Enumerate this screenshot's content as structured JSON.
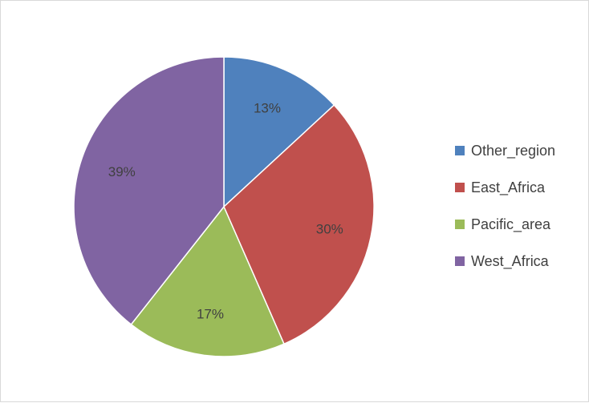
{
  "chart_data": {
    "type": "pie",
    "title": "",
    "categories": [
      "Other_region",
      "East_Africa",
      "Pacific_area",
      "West_Africa"
    ],
    "values": [
      13,
      30,
      17,
      39
    ],
    "labels": [
      "13%",
      "30%",
      "17%",
      "39%"
    ],
    "colors": [
      "#4f81bd",
      "#c0504d",
      "#9bbb59",
      "#8064a2"
    ],
    "legend": {
      "position": "right",
      "entries": [
        "Other_region",
        "East_Africa",
        "Pacific_area",
        "West_Africa"
      ]
    }
  }
}
